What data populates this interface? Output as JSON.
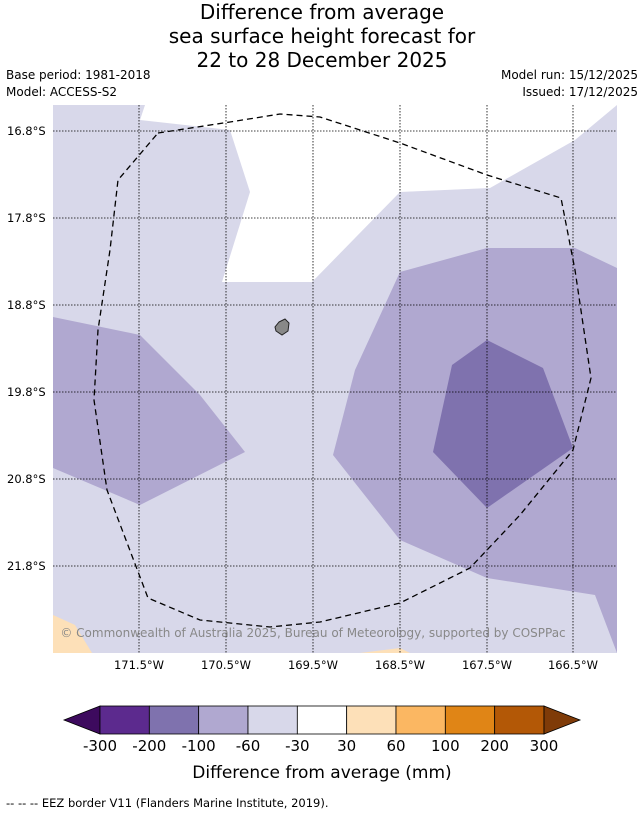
{
  "title": {
    "line1": "Difference from average",
    "line2": "sea surface height forecast for",
    "line3": "22 to 28 December 2025"
  },
  "meta": {
    "base_period": "Base period: 1981-2018",
    "model": "Model: ACCESS-S2",
    "model_run": "Model run: 15/12/2025",
    "issued": "Issued: 17/12/2025"
  },
  "map": {
    "lat_labels": [
      "16.8°S",
      "17.8°S",
      "18.8°S",
      "19.8°S",
      "20.8°S",
      "21.8°S"
    ],
    "lon_labels": [
      "171.5°W",
      "170.5°W",
      "169.5°W",
      "168.5°W",
      "167.5°W",
      "166.5°W"
    ],
    "copyright": "© Commonwealth of Australia 2025, Bureau of Meteorology, supported by COSPPac",
    "colors": {
      "neg_30_60": "#d8d8ea",
      "neg_60_100": "#b0a8d0",
      "neg_100_200": "#7f72ae",
      "pos_30_60": "#fde0b8",
      "land": "#888888"
    }
  },
  "colorbar": {
    "labels": [
      "-300",
      "-200",
      "-100",
      "-60",
      "-30",
      "30",
      "60",
      "100",
      "200",
      "300"
    ],
    "colors": [
      "#3d0a5e",
      "#5c2a8e",
      "#7f72ae",
      "#b0a8d0",
      "#d8d8ea",
      "#ffffff",
      "#fde0b8",
      "#fbb762",
      "#e08516",
      "#b35806",
      "#7f3b08"
    ],
    "title": "Difference from average (mm)"
  },
  "footer": {
    "legend_symbol": "--  --  --",
    "legend_text": "EEZ border V11 (Flanders Marine Institute, 2019)."
  }
}
